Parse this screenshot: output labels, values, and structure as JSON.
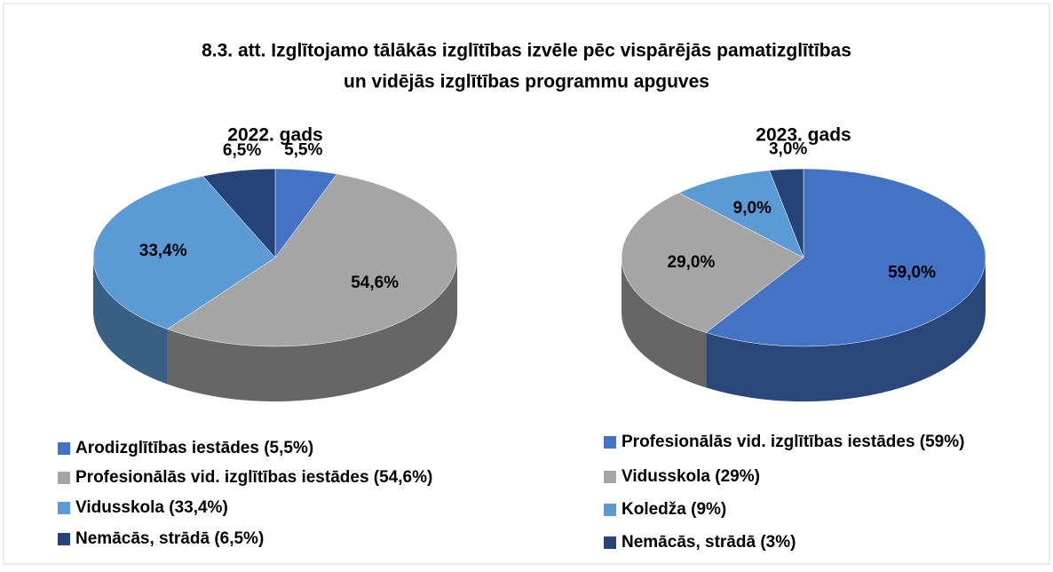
{
  "title": [
    "8.3. att. Izglītojamo tālākās izglītības izvēle pēc vispārējās pamatizglītības",
    "un vidējās izglītības programmu apguves"
  ],
  "chart_data": [
    {
      "type": "pie",
      "title": "2022. gads",
      "categories": [
        "Arodizglītības iestādes (5,5%)",
        "Profesionālās vid. izglītības iestādes (54,6%)",
        "Vidusskola (33,4%)",
        "Nemācās, strādā (6,5%)"
      ],
      "values": [
        5.5,
        54.6,
        33.4,
        6.5
      ],
      "value_labels": [
        "5,5%",
        "54,6%",
        "33,4%",
        "6,5%"
      ],
      "colors": [
        "#4472c4",
        "#a5a5a5",
        "#5b9bd5",
        "#264478"
      ]
    },
    {
      "type": "pie",
      "title": "2023. gads",
      "categories": [
        "Profesionālās vid. izglītības iestādes (59%)",
        "Vidusskola (29%)",
        "Koledža (9%)",
        "Nemācās, strādā (3%)"
      ],
      "values": [
        59.0,
        29.0,
        9.0,
        3.0
      ],
      "value_labels": [
        "59,0%",
        "29,0%",
        "9,0%",
        "3,0%"
      ],
      "colors": [
        "#4472c4",
        "#a5a5a5",
        "#5b9bd5",
        "#264478"
      ]
    }
  ]
}
